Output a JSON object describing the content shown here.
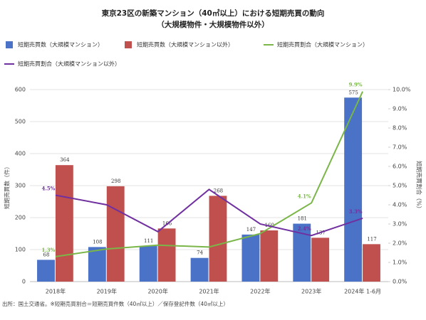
{
  "chart_data": {
    "type": "bar",
    "title": "東京23区の新築マンション（40㎡以上）における短期売買の動向",
    "subtitle": "（大規模物件・大規模物件以外）",
    "categories": [
      "2018年",
      "2019年",
      "2020年",
      "2021年",
      "2022年",
      "2023年",
      "2024年 1-6月"
    ],
    "series": [
      {
        "name": "短期売買数（大規模マンション）",
        "type": "bar",
        "color": "#4a72c6",
        "values": [
          68,
          108,
          111,
          74,
          147,
          181,
          575
        ]
      },
      {
        "name": "短期売買数（大規模マンション以外）",
        "type": "bar",
        "color": "#c0504d",
        "values": [
          364,
          298,
          166,
          268,
          160,
          137,
          117
        ]
      },
      {
        "name": "短期売買割合（大規模マンション）",
        "type": "line",
        "axis": "y2",
        "color": "#7ab648",
        "values": [
          1.3,
          1.7,
          1.9,
          1.8,
          2.5,
          4.1,
          9.9
        ],
        "value_labels": [
          "1.3%",
          null,
          null,
          null,
          null,
          "4.1%",
          "9.9%"
        ]
      },
      {
        "name": "短期売買割合（大規模マンション以外）",
        "type": "line",
        "axis": "y2",
        "color": "#7030a0",
        "values": [
          4.5,
          4.0,
          2.6,
          4.8,
          3.0,
          2.4,
          3.3
        ],
        "value_labels": [
          "4.5%",
          null,
          null,
          null,
          null,
          "2.4%",
          "3.3%"
        ]
      }
    ],
    "ylabel": "短期売買数（件）",
    "y2label": "短期売買割合（%）",
    "ylim": [
      0,
      600
    ],
    "yticks": [
      0,
      100,
      200,
      300,
      400,
      500,
      600
    ],
    "y2lim": [
      0,
      10
    ],
    "y2ticks": [
      {
        "value": 0,
        "label": "0.0%"
      },
      {
        "value": 1,
        "label": "1.0%"
      },
      {
        "value": 2,
        "label": "2.0%"
      },
      {
        "value": 3,
        "label": "3.0%"
      },
      {
        "value": 4,
        "label": "4.0%"
      },
      {
        "value": 5,
        "label": "5.0%"
      },
      {
        "value": 6,
        "label": "6.0%"
      },
      {
        "value": 7,
        "label": "7.0%"
      },
      {
        "value": 8,
        "label": "8.0%"
      },
      {
        "value": 9,
        "label": "9.0%"
      },
      {
        "value": 10,
        "label": "10.0%"
      }
    ],
    "grid": true,
    "note": "出所：国土交通省。※短期売買割合＝短期売買件数（40㎡以上）／保存登記件数（40㎡以上）"
  }
}
